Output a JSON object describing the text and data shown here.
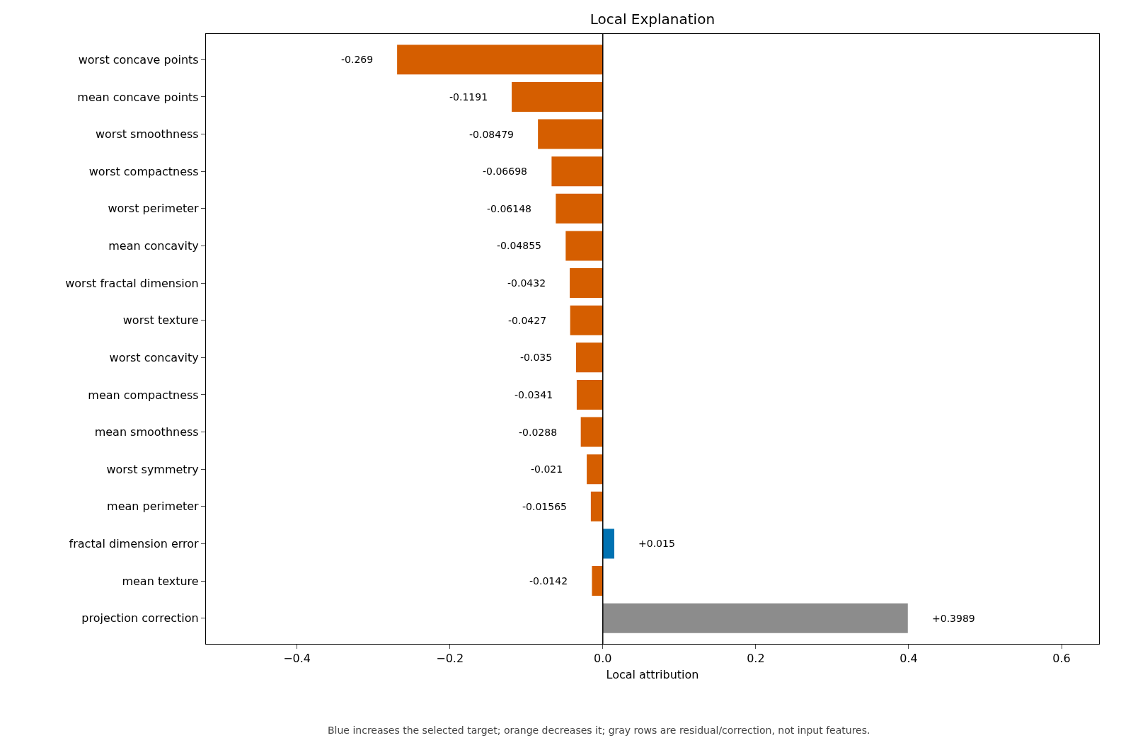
{
  "chart_data": {
    "type": "bar",
    "orientation": "horizontal",
    "title": "Local Explanation",
    "xlabel": "Local attribution",
    "categories": [
      "worst concave points",
      "mean concave points",
      "worst smoothness",
      "worst compactness",
      "worst perimeter",
      "mean concavity",
      "worst fractal dimension",
      "worst texture",
      "worst concavity",
      "mean compactness",
      "mean smoothness",
      "worst symmetry",
      "mean perimeter",
      "fractal dimension error",
      "mean texture",
      "projection correction"
    ],
    "values": [
      -0.269,
      -0.1191,
      -0.08479,
      -0.06698,
      -0.06148,
      -0.04855,
      -0.0432,
      -0.0427,
      -0.035,
      -0.0341,
      -0.0288,
      -0.021,
      -0.01565,
      0.015,
      -0.0142,
      0.3989
    ],
    "value_labels": [
      "-0.269",
      "-0.1191",
      "-0.08479",
      "-0.06698",
      "-0.06148",
      "-0.04855",
      "-0.0432",
      "-0.0427",
      "-0.035",
      "-0.0341",
      "-0.0288",
      "-0.021",
      "-0.01565",
      "+0.015",
      "-0.0142",
      "+0.3989"
    ],
    "colors": [
      "#d55e00",
      "#d55e00",
      "#d55e00",
      "#d55e00",
      "#d55e00",
      "#d55e00",
      "#d55e00",
      "#d55e00",
      "#d55e00",
      "#d55e00",
      "#d55e00",
      "#d55e00",
      "#d55e00",
      "#0072b2",
      "#d55e00",
      "#8c8c8c"
    ],
    "xlim": [
      -0.519,
      0.649
    ],
    "xticks": [
      {
        "value": -0.4,
        "label": "−0.4"
      },
      {
        "value": -0.2,
        "label": "−0.2"
      },
      {
        "value": 0.0,
        "label": "0.0"
      },
      {
        "value": 0.2,
        "label": "0.2"
      },
      {
        "value": 0.4,
        "label": "0.4"
      },
      {
        "value": 0.6,
        "label": "0.6"
      }
    ],
    "ref_lines": [
      {
        "axis": "x",
        "value": 0,
        "color": "#000000"
      }
    ],
    "annotations": [
      "Blue increases the selected target; orange decreases it; gray rows are residual/correction, not input features."
    ]
  }
}
